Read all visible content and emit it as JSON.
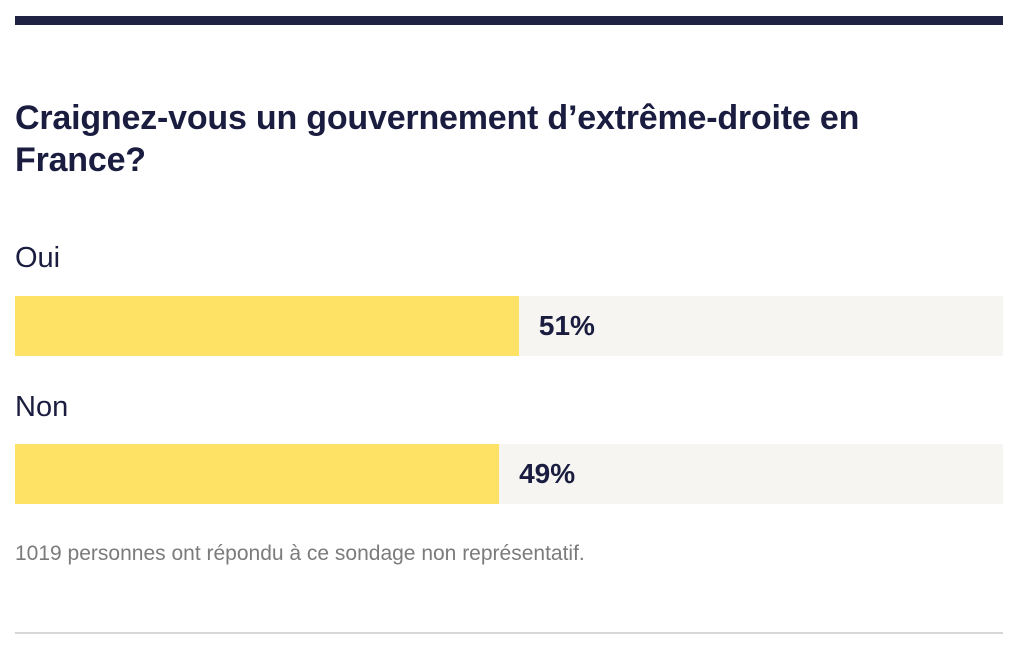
{
  "poll": {
    "question": "Craignez-vous un gouvernement d’extrême-droite en France?",
    "options": [
      {
        "label": "Oui",
        "percent": 51,
        "percent_label": "51%"
      },
      {
        "label": "Non",
        "percent": 49,
        "percent_label": "49%"
      }
    ],
    "footnote": "1019 personnes ont répondu à ce sondage non représentatif."
  },
  "colors": {
    "bar_fill": "#fee265",
    "bar_track": "#f6f5f2",
    "text": "#1a1d3f",
    "rule": "#1f2242",
    "muted": "#7b7b7b"
  }
}
